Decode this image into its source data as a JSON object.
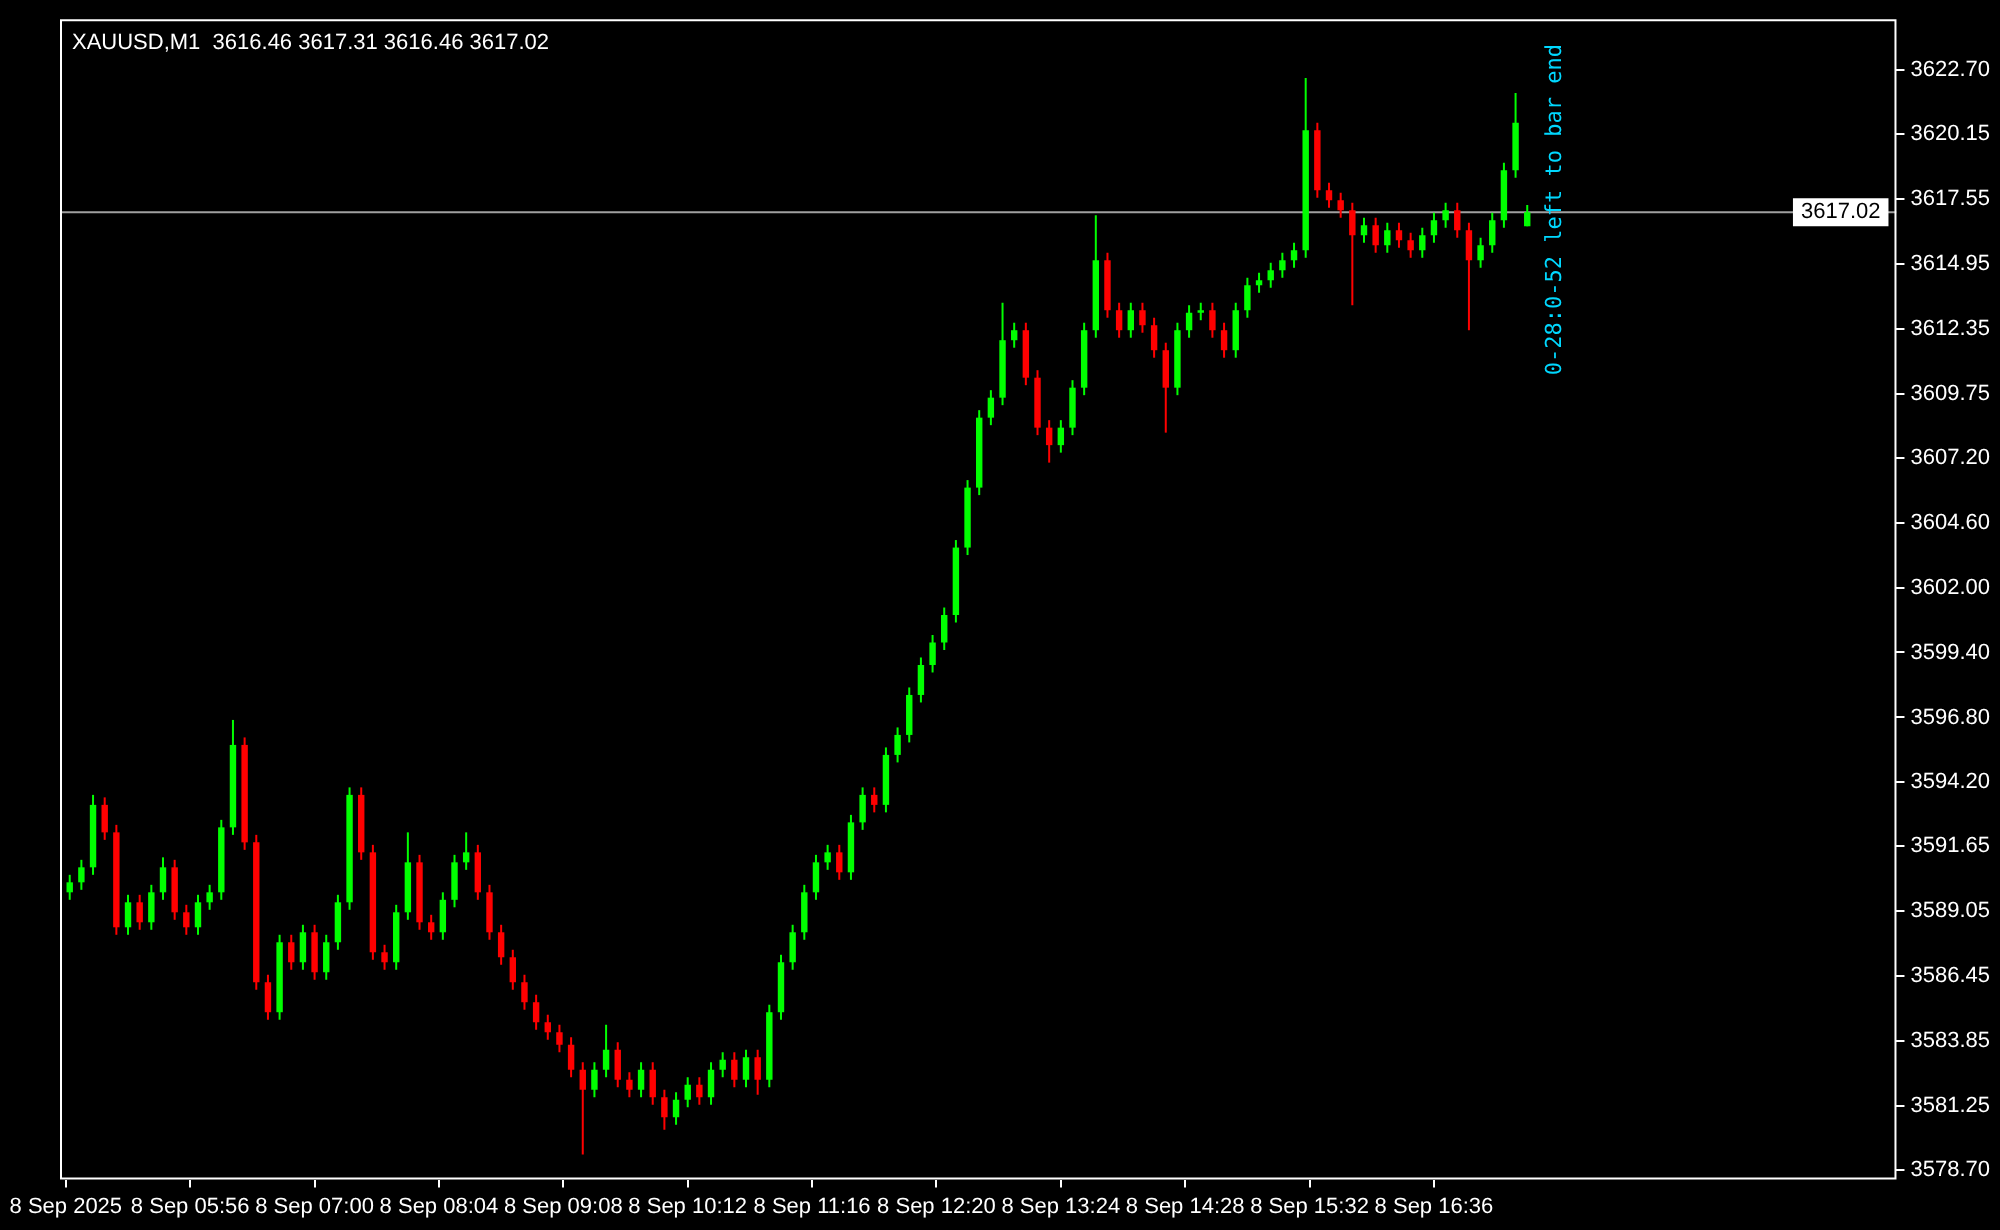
{
  "chart_data": {
    "type": "candlestick",
    "title": "XAUUSD,M1  3616.46 3617.31 3616.46 3617.02",
    "annotations": [
      "0-28:0-52 left to bar end"
    ],
    "x": [
      "2025-09-08T04:54",
      "2025-09-08T05:00",
      "2025-09-08T05:06",
      "2025-09-08T05:12",
      "2025-09-08T05:18",
      "2025-09-08T05:24",
      "2025-09-08T05:30",
      "2025-09-08T05:36",
      "2025-09-08T05:42",
      "2025-09-08T05:48",
      "2025-09-08T05:54",
      "2025-09-08T06:00",
      "2025-09-08T06:06",
      "2025-09-08T06:12",
      "2025-09-08T06:18",
      "2025-09-08T06:24",
      "2025-09-08T06:30",
      "2025-09-08T06:36",
      "2025-09-08T06:42",
      "2025-09-08T06:48",
      "2025-09-08T06:54",
      "2025-09-08T07:00",
      "2025-09-08T07:06",
      "2025-09-08T07:12",
      "2025-09-08T07:18",
      "2025-09-08T07:24",
      "2025-09-08T07:30",
      "2025-09-08T07:36",
      "2025-09-08T07:42",
      "2025-09-08T07:48",
      "2025-09-08T07:54",
      "2025-09-08T08:00",
      "2025-09-08T08:06",
      "2025-09-08T08:12",
      "2025-09-08T08:18",
      "2025-09-08T08:24",
      "2025-09-08T08:30",
      "2025-09-08T08:36",
      "2025-09-08T08:42",
      "2025-09-08T08:48",
      "2025-09-08T08:54",
      "2025-09-08T09:00",
      "2025-09-08T09:06",
      "2025-09-08T09:12",
      "2025-09-08T09:18",
      "2025-09-08T09:24",
      "2025-09-08T09:30",
      "2025-09-08T09:36",
      "2025-09-08T09:42",
      "2025-09-08T09:48",
      "2025-09-08T09:54",
      "2025-09-08T10:00",
      "2025-09-08T10:06",
      "2025-09-08T10:12",
      "2025-09-08T10:18",
      "2025-09-08T10:24",
      "2025-09-08T10:30",
      "2025-09-08T10:36",
      "2025-09-08T10:42",
      "2025-09-08T10:48",
      "2025-09-08T10:54",
      "2025-09-08T11:00",
      "2025-09-08T11:06",
      "2025-09-08T11:12",
      "2025-09-08T11:18",
      "2025-09-08T11:24",
      "2025-09-08T11:30",
      "2025-09-08T11:36",
      "2025-09-08T11:42",
      "2025-09-08T11:48",
      "2025-09-08T11:54",
      "2025-09-08T12:00",
      "2025-09-08T12:06",
      "2025-09-08T12:12",
      "2025-09-08T12:18",
      "2025-09-08T12:24",
      "2025-09-08T12:30",
      "2025-09-08T12:36",
      "2025-09-08T12:42",
      "2025-09-08T12:48",
      "2025-09-08T12:54",
      "2025-09-08T13:00",
      "2025-09-08T13:06",
      "2025-09-08T13:12",
      "2025-09-08T13:18",
      "2025-09-08T13:24",
      "2025-09-08T13:30",
      "2025-09-08T13:36",
      "2025-09-08T13:42",
      "2025-09-08T13:48",
      "2025-09-08T13:54",
      "2025-09-08T14:00",
      "2025-09-08T14:06",
      "2025-09-08T14:12",
      "2025-09-08T14:18",
      "2025-09-08T14:24",
      "2025-09-08T14:30",
      "2025-09-08T14:36",
      "2025-09-08T14:42",
      "2025-09-08T14:48",
      "2025-09-08T14:54",
      "2025-09-08T15:00",
      "2025-09-08T15:06",
      "2025-09-08T15:12",
      "2025-09-08T15:18",
      "2025-09-08T15:24",
      "2025-09-08T15:30",
      "2025-09-08T15:36",
      "2025-09-08T15:42",
      "2025-09-08T15:48",
      "2025-09-08T15:54",
      "2025-09-08T16:00",
      "2025-09-08T16:06",
      "2025-09-08T16:12",
      "2025-09-08T16:18",
      "2025-09-08T16:24",
      "2025-09-08T16:30",
      "2025-09-08T16:36",
      "2025-09-08T16:42",
      "2025-09-08T16:48",
      "2025-09-08T16:54",
      "2025-09-08T17:00",
      "2025-09-08T17:06",
      "2025-09-08T17:12",
      "2025-09-08T17:18",
      "2025-09-08T17:24"
    ],
    "ohlc": [
      [
        3589.8,
        3590.5,
        3589.5,
        3590.2
      ],
      [
        3590.2,
        3591.1,
        3589.9,
        3590.8
      ],
      [
        3590.8,
        3593.7,
        3590.5,
        3593.3
      ],
      [
        3593.3,
        3593.6,
        3591.9,
        3592.2
      ],
      [
        3592.2,
        3592.5,
        3588.1,
        3588.4
      ],
      [
        3588.4,
        3589.7,
        3588.1,
        3589.4
      ],
      [
        3589.4,
        3589.7,
        3588.3,
        3588.6
      ],
      [
        3588.6,
        3590.1,
        3588.3,
        3589.8
      ],
      [
        3589.8,
        3591.2,
        3589.5,
        3590.8
      ],
      [
        3590.8,
        3591.1,
        3588.7,
        3589.0
      ],
      [
        3589.0,
        3589.3,
        3588.1,
        3588.4
      ],
      [
        3588.4,
        3589.7,
        3588.1,
        3589.4
      ],
      [
        3589.4,
        3590.1,
        3589.1,
        3589.8
      ],
      [
        3589.8,
        3592.7,
        3589.5,
        3592.4
      ],
      [
        3592.4,
        3596.7,
        3592.1,
        3595.7
      ],
      [
        3595.7,
        3596.0,
        3591.5,
        3591.8
      ],
      [
        3591.8,
        3592.1,
        3585.9,
        3586.2
      ],
      [
        3586.2,
        3586.5,
        3584.7,
        3585.0
      ],
      [
        3585.0,
        3588.1,
        3584.7,
        3587.8
      ],
      [
        3587.8,
        3588.1,
        3586.7,
        3587.0
      ],
      [
        3587.0,
        3588.5,
        3586.7,
        3588.2
      ],
      [
        3588.2,
        3588.5,
        3586.3,
        3586.6
      ],
      [
        3586.6,
        3588.1,
        3586.3,
        3587.8
      ],
      [
        3587.8,
        3589.7,
        3587.5,
        3589.4
      ],
      [
        3589.4,
        3594.0,
        3589.1,
        3593.7
      ],
      [
        3593.7,
        3594.0,
        3591.1,
        3591.4
      ],
      [
        3591.4,
        3591.7,
        3587.1,
        3587.4
      ],
      [
        3587.4,
        3587.7,
        3586.7,
        3587.0
      ],
      [
        3587.0,
        3589.3,
        3586.7,
        3589.0
      ],
      [
        3589.0,
        3592.2,
        3588.7,
        3591.0
      ],
      [
        3591.0,
        3591.3,
        3588.3,
        3588.6
      ],
      [
        3588.6,
        3588.9,
        3587.9,
        3588.2
      ],
      [
        3588.2,
        3589.8,
        3587.9,
        3589.5
      ],
      [
        3589.5,
        3591.3,
        3589.2,
        3591.0
      ],
      [
        3591.0,
        3592.2,
        3590.7,
        3591.4
      ],
      [
        3591.4,
        3591.7,
        3589.5,
        3589.8
      ],
      [
        3589.8,
        3590.1,
        3587.9,
        3588.2
      ],
      [
        3588.2,
        3588.5,
        3586.9,
        3587.2
      ],
      [
        3587.2,
        3587.5,
        3585.9,
        3586.2
      ],
      [
        3586.2,
        3586.5,
        3585.1,
        3585.4
      ],
      [
        3585.4,
        3585.7,
        3584.3,
        3584.6
      ],
      [
        3584.6,
        3584.9,
        3583.9,
        3584.2
      ],
      [
        3584.2,
        3584.5,
        3583.4,
        3583.7
      ],
      [
        3583.7,
        3584.0,
        3582.4,
        3582.7
      ],
      [
        3582.7,
        3583.0,
        3579.3,
        3581.9
      ],
      [
        3581.9,
        3583.0,
        3581.6,
        3582.7
      ],
      [
        3582.7,
        3584.5,
        3582.4,
        3583.5
      ],
      [
        3583.5,
        3583.8,
        3582.0,
        3582.3
      ],
      [
        3582.3,
        3582.6,
        3581.6,
        3581.9
      ],
      [
        3581.9,
        3583.0,
        3581.6,
        3582.7
      ],
      [
        3582.7,
        3583.0,
        3581.3,
        3581.6
      ],
      [
        3581.6,
        3581.9,
        3580.3,
        3580.8
      ],
      [
        3580.8,
        3581.8,
        3580.5,
        3581.5
      ],
      [
        3581.5,
        3582.4,
        3581.2,
        3582.1
      ],
      [
        3582.1,
        3582.4,
        3581.3,
        3581.6
      ],
      [
        3581.6,
        3583.0,
        3581.3,
        3582.7
      ],
      [
        3582.7,
        3583.4,
        3582.4,
        3583.1
      ],
      [
        3583.1,
        3583.4,
        3582.0,
        3582.3
      ],
      [
        3582.3,
        3583.5,
        3582.0,
        3583.2
      ],
      [
        3583.2,
        3583.5,
        3581.7,
        3582.3
      ],
      [
        3582.3,
        3585.3,
        3582.0,
        3585.0
      ],
      [
        3585.0,
        3587.3,
        3584.7,
        3587.0
      ],
      [
        3587.0,
        3588.5,
        3586.7,
        3588.2
      ],
      [
        3588.2,
        3590.1,
        3587.9,
        3589.8
      ],
      [
        3589.8,
        3591.3,
        3589.5,
        3591.0
      ],
      [
        3591.0,
        3591.7,
        3590.7,
        3591.4
      ],
      [
        3591.4,
        3591.7,
        3590.3,
        3590.6
      ],
      [
        3590.6,
        3592.9,
        3590.3,
        3592.6
      ],
      [
        3592.6,
        3594.0,
        3592.3,
        3593.7
      ],
      [
        3593.7,
        3594.0,
        3593.0,
        3593.3
      ],
      [
        3593.3,
        3595.6,
        3593.0,
        3595.3
      ],
      [
        3595.3,
        3596.4,
        3595.0,
        3596.1
      ],
      [
        3596.1,
        3598.0,
        3595.8,
        3597.7
      ],
      [
        3597.7,
        3599.2,
        3597.4,
        3598.9
      ],
      [
        3598.9,
        3600.1,
        3598.6,
        3599.8
      ],
      [
        3599.8,
        3601.2,
        3599.5,
        3600.9
      ],
      [
        3600.9,
        3603.9,
        3600.6,
        3603.6
      ],
      [
        3603.6,
        3606.3,
        3603.3,
        3606.0
      ],
      [
        3606.0,
        3609.1,
        3605.7,
        3608.8
      ],
      [
        3608.8,
        3609.9,
        3608.5,
        3609.6
      ],
      [
        3609.6,
        3613.4,
        3609.3,
        3611.9
      ],
      [
        3611.9,
        3612.6,
        3611.6,
        3612.3
      ],
      [
        3612.3,
        3612.6,
        3610.1,
        3610.4
      ],
      [
        3610.4,
        3610.7,
        3608.1,
        3608.4
      ],
      [
        3608.4,
        3608.7,
        3607.0,
        3607.7
      ],
      [
        3607.7,
        3608.7,
        3607.4,
        3608.4
      ],
      [
        3608.4,
        3610.3,
        3608.1,
        3610.0
      ],
      [
        3610.0,
        3612.6,
        3609.7,
        3612.3
      ],
      [
        3612.3,
        3616.9,
        3612.0,
        3615.1
      ],
      [
        3615.1,
        3615.4,
        3612.8,
        3613.1
      ],
      [
        3613.1,
        3613.4,
        3612.0,
        3612.3
      ],
      [
        3612.3,
        3613.4,
        3612.0,
        3613.1
      ],
      [
        3613.1,
        3613.4,
        3612.2,
        3612.5
      ],
      [
        3612.5,
        3612.8,
        3611.2,
        3611.5
      ],
      [
        3611.5,
        3611.8,
        3608.2,
        3610.0
      ],
      [
        3610.0,
        3612.6,
        3609.7,
        3612.3
      ],
      [
        3612.3,
        3613.3,
        3612.0,
        3613.0
      ],
      [
        3613.0,
        3613.4,
        3612.7,
        3613.1
      ],
      [
        3613.1,
        3613.4,
        3612.0,
        3612.3
      ],
      [
        3612.3,
        3612.6,
        3611.2,
        3611.5
      ],
      [
        3611.5,
        3613.4,
        3611.2,
        3613.1
      ],
      [
        3613.1,
        3614.4,
        3612.8,
        3614.1
      ],
      [
        3614.1,
        3614.6,
        3613.8,
        3614.3
      ],
      [
        3614.3,
        3615.0,
        3614.0,
        3614.7
      ],
      [
        3614.7,
        3615.4,
        3614.4,
        3615.1
      ],
      [
        3615.1,
        3615.8,
        3614.8,
        3615.5
      ],
      [
        3615.5,
        3622.4,
        3615.2,
        3620.3
      ],
      [
        3620.3,
        3620.6,
        3617.6,
        3617.9
      ],
      [
        3617.9,
        3618.2,
        3617.2,
        3617.5
      ],
      [
        3617.5,
        3617.8,
        3616.8,
        3617.1
      ],
      [
        3617.1,
        3617.4,
        3613.3,
        3616.1
      ],
      [
        3616.1,
        3616.8,
        3615.8,
        3616.5
      ],
      [
        3616.5,
        3616.8,
        3615.4,
        3615.7
      ],
      [
        3615.7,
        3616.6,
        3615.4,
        3616.3
      ],
      [
        3616.3,
        3616.6,
        3615.6,
        3615.9
      ],
      [
        3615.9,
        3616.2,
        3615.2,
        3615.5
      ],
      [
        3615.5,
        3616.4,
        3615.2,
        3616.1
      ],
      [
        3616.1,
        3617.0,
        3615.8,
        3616.7
      ],
      [
        3616.7,
        3617.4,
        3616.4,
        3617.1
      ],
      [
        3617.1,
        3617.4,
        3616.0,
        3616.3
      ],
      [
        3616.3,
        3616.6,
        3612.3,
        3615.1
      ],
      [
        3615.1,
        3616.0,
        3614.8,
        3615.7
      ],
      [
        3615.7,
        3617.0,
        3615.4,
        3616.7
      ],
      [
        3616.7,
        3619.0,
        3616.4,
        3618.7
      ],
      [
        3618.7,
        3621.8,
        3618.4,
        3620.6
      ],
      [
        3616.46,
        3617.31,
        3616.46,
        3617.02
      ]
    ],
    "colors": [
      "#00ff00",
      "#00ff00",
      "#00ff00",
      "#ff0000",
      "#ff0000",
      "#00ff00",
      "#ff0000",
      "#00ff00",
      "#00ff00",
      "#ff0000",
      "#ff0000",
      "#00ff00",
      "#00ff00",
      "#00ff00",
      "#00ff00",
      "#ff0000",
      "#ff0000",
      "#ff0000",
      "#00ff00",
      "#ff0000",
      "#00ff00",
      "#ff0000",
      "#00ff00",
      "#00ff00",
      "#00ff00",
      "#ff0000",
      "#ff0000",
      "#ff0000",
      "#00ff00",
      "#00ff00",
      "#ff0000",
      "#ff0000",
      "#00ff00",
      "#00ff00",
      "#00ff00",
      "#ff0000",
      "#ff0000",
      "#ff0000",
      "#ff0000",
      "#ff0000",
      "#ff0000",
      "#ff0000",
      "#ff0000",
      "#ff0000",
      "#ff0000",
      "#00ff00",
      "#00ff00",
      "#ff0000",
      "#ff0000",
      "#00ff00",
      "#ff0000",
      "#ff0000",
      "#00ff00",
      "#00ff00",
      "#ff0000",
      "#00ff00",
      "#00ff00",
      "#ff0000",
      "#00ff00",
      "#ff0000",
      "#00ff00",
      "#00ff00",
      "#00ff00",
      "#00ff00",
      "#00ff00",
      "#00ff00",
      "#ff0000",
      "#00ff00",
      "#00ff00",
      "#ff0000",
      "#00ff00",
      "#00ff00",
      "#00ff00",
      "#00ff00",
      "#00ff00",
      "#00ff00",
      "#00ff00",
      "#00ff00",
      "#00ff00",
      "#00ff00",
      "#00ff00",
      "#00ff00",
      "#ff0000",
      "#ff0000",
      "#ff0000",
      "#00ff00",
      "#00ff00",
      "#00ff00",
      "#00ff00",
      "#ff0000",
      "#ff0000",
      "#00ff00",
      "#ff0000",
      "#ff0000",
      "#ff0000",
      "#00ff00",
      "#00ff00",
      "#00ff00",
      "#ff0000",
      "#ff0000",
      "#00ff00",
      "#00ff00",
      "#00ff00",
      "#00ff00",
      "#00ff00",
      "#00ff00",
      "#00ff00",
      "#ff0000",
      "#ff0000",
      "#ff0000",
      "#ff0000",
      "#00ff00",
      "#ff0000",
      "#00ff00",
      "#ff0000",
      "#ff0000",
      "#00ff00",
      "#00ff00",
      "#00ff00",
      "#ff0000",
      "#ff0000",
      "#00ff00",
      "#00ff00",
      "#00ff00",
      "#00ff00",
      "#00ff00"
    ],
    "xlim": [
      "2025-09-08T04:49",
      "2025-09-08T20:34"
    ],
    "xticks": [
      {
        "value": "2025-09-08T04:52",
        "label": "8 Sep 2025"
      },
      {
        "value": "2025-09-08T05:56",
        "label": "8 Sep 05:56"
      },
      {
        "value": "2025-09-08T07:00",
        "label": "8 Sep 07:00"
      },
      {
        "value": "2025-09-08T08:04",
        "label": "8 Sep 08:04"
      },
      {
        "value": "2025-09-08T09:08",
        "label": "8 Sep 09:08"
      },
      {
        "value": "2025-09-08T10:12",
        "label": "8 Sep 10:12"
      },
      {
        "value": "2025-09-08T11:16",
        "label": "8 Sep 11:16"
      },
      {
        "value": "2025-09-08T12:20",
        "label": "8 Sep 12:20"
      },
      {
        "value": "2025-09-08T13:24",
        "label": "8 Sep 13:24"
      },
      {
        "value": "2025-09-08T14:28",
        "label": "8 Sep 14:28"
      },
      {
        "value": "2025-09-08T15:32",
        "label": "8 Sep 15:32"
      },
      {
        "value": "2025-09-08T16:36",
        "label": "8 Sep 16:36"
      }
    ],
    "ylim": [
      3578.3,
      3624.75
    ],
    "yticks": [
      {
        "value": 3622.7,
        "label": "3622.70"
      },
      {
        "value": 3620.15,
        "label": "3620.15"
      },
      {
        "value": 3617.55,
        "label": "3617.55"
      },
      {
        "value": 3614.95,
        "label": "3614.95"
      },
      {
        "value": 3612.35,
        "label": "3612.35"
      },
      {
        "value": 3609.75,
        "label": "3609.75"
      },
      {
        "value": 3607.2,
        "label": "3607.20"
      },
      {
        "value": 3604.6,
        "label": "3604.60"
      },
      {
        "value": 3602,
        "label": "3602.00"
      },
      {
        "value": 3599.4,
        "label": "3599.40"
      },
      {
        "value": 3596.8,
        "label": "3596.80"
      },
      {
        "value": 3594.2,
        "label": "3594.20"
      },
      {
        "value": 3591.65,
        "label": "3591.65"
      },
      {
        "value": 3589.05,
        "label": "3589.05"
      },
      {
        "value": 3586.45,
        "label": "3586.45"
      },
      {
        "value": 3583.85,
        "label": "3583.85"
      },
      {
        "value": 3581.25,
        "label": "3581.25"
      },
      {
        "value": 3578.7,
        "label": "3578.70"
      }
    ],
    "ref_lines": [
      {
        "axis": "y",
        "value": 3617.02,
        "label": "3617.02",
        "color": "#a0a0a0"
      }
    ]
  }
}
